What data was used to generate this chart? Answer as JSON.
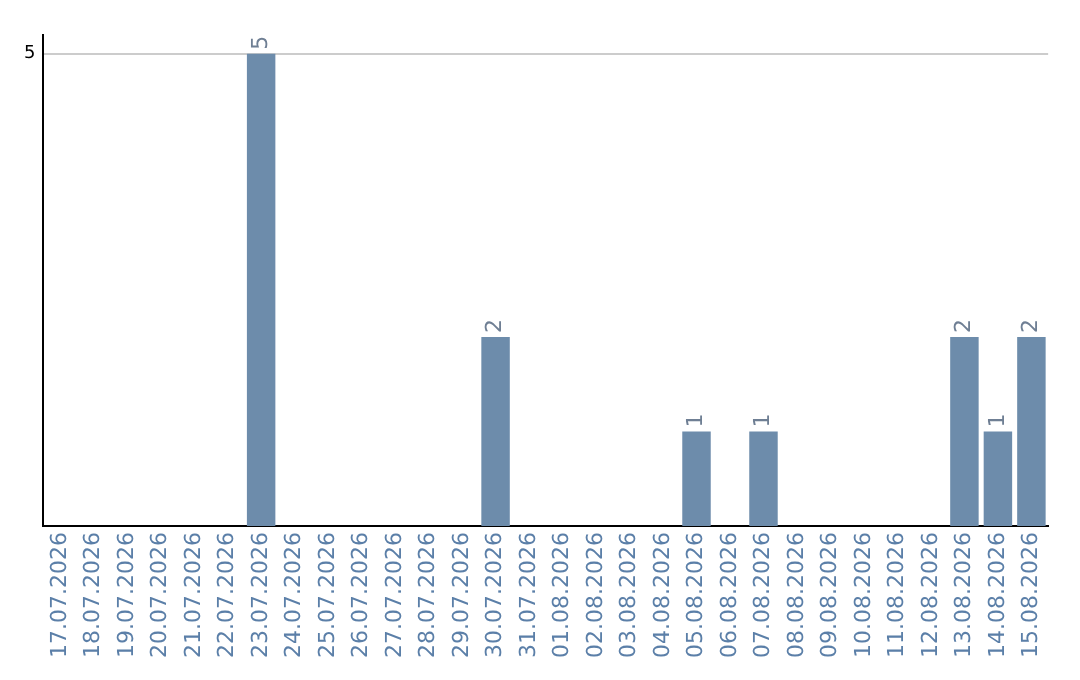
{
  "chart_data": {
    "type": "bar",
    "categories": [
      "17.07.2026",
      "18.07.2026",
      "19.07.2026",
      "20.07.2026",
      "21.07.2026",
      "22.07.2026",
      "23.07.2026",
      "24.07.2026",
      "25.07.2026",
      "26.07.2026",
      "27.07.2026",
      "28.07.2026",
      "29.07.2026",
      "30.07.2026",
      "31.07.2026",
      "01.08.2026",
      "02.08.2026",
      "03.08.2026",
      "04.08.2026",
      "05.08.2026",
      "06.08.2026",
      "07.08.2026",
      "08.08.2026",
      "09.08.2026",
      "10.08.2026",
      "11.08.2026",
      "12.08.2026",
      "13.08.2026",
      "14.08.2026",
      "15.08.2026"
    ],
    "values": [
      0,
      0,
      0,
      0,
      0,
      0,
      5,
      0,
      0,
      0,
      0,
      0,
      0,
      2,
      0,
      0,
      0,
      0,
      0,
      1,
      0,
      1,
      0,
      0,
      0,
      0,
      0,
      2,
      1,
      2
    ],
    "value_labels": [
      null,
      null,
      null,
      null,
      null,
      null,
      "5",
      null,
      null,
      null,
      null,
      null,
      null,
      "2",
      null,
      null,
      null,
      null,
      null,
      "1",
      null,
      "1",
      null,
      null,
      null,
      null,
      null,
      "2",
      "1",
      "2"
    ],
    "color": "#6d8cab",
    "ylim": [
      0,
      5.2
    ],
    "yticks": [
      5
    ],
    "grid": "y"
  }
}
